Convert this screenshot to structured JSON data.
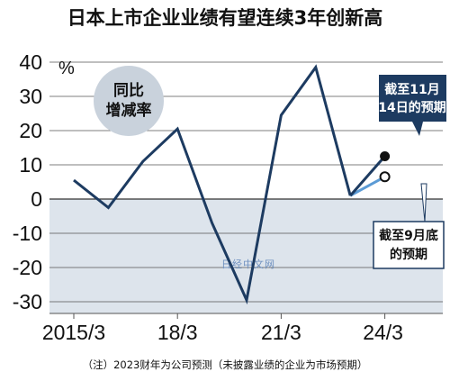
{
  "chart_data": {
    "type": "line",
    "title": "日本上市企业业绩有望连续3年创新高",
    "unit": "%",
    "bubble_label": [
      "同比",
      "增减率"
    ],
    "x": [
      "2015/3",
      "2016/3",
      "2017/3",
      "2018/3",
      "2019/3",
      "2020/3",
      "2021/3",
      "2022/3",
      "2023/3"
    ],
    "series": [
      {
        "values": [
          5.5,
          -2.5,
          11,
          20.5,
          -7,
          -29.5,
          24.5,
          38.5,
          1
        ]
      }
    ],
    "forecasts": [
      {
        "label": [
          "截至11月",
          "14日的预期"
        ],
        "value": 12.5,
        "style": "dark"
      },
      {
        "label": [
          "截至9月底",
          "的预期"
        ],
        "value": 6.5,
        "style": "light"
      }
    ],
    "x_tick_labels": [
      "2015/3",
      "18/3",
      "21/3",
      "24/3"
    ],
    "y_ticks": [
      40,
      30,
      20,
      10,
      0,
      -10,
      -20,
      -30
    ],
    "y_tick_labels": [
      "40",
      "30",
      "20",
      "10",
      "0",
      "-10",
      "-20",
      "-30"
    ],
    "ylim": [
      -35,
      42
    ],
    "grid": "horizontal",
    "negative_region_shaded": true,
    "note": "（注）2023财年为公司预测（未披露业绩的企业为市场预期）",
    "watermark": "日经中文网",
    "colors": {
      "line": "#1d3b61",
      "light_forecast": "#5b9bd5",
      "shade": "#dde4ec",
      "bubble": "#c9d2dc",
      "callout": "#1d3b61"
    }
  }
}
